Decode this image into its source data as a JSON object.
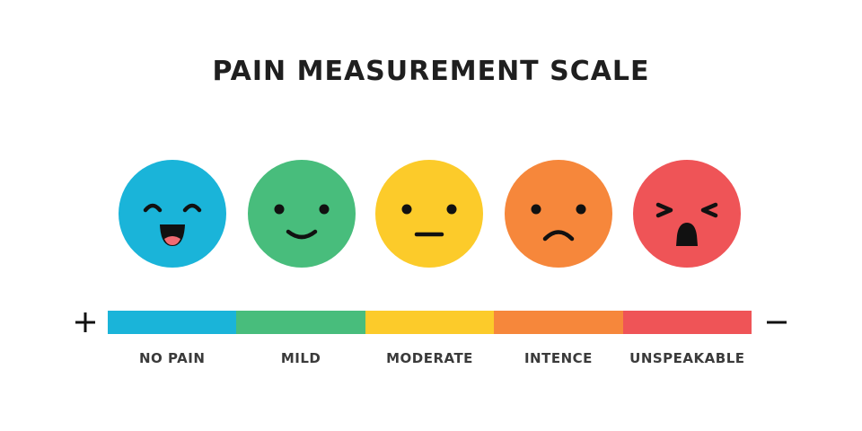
{
  "title": "PAIN MEASUREMENT SCALE",
  "scale": {
    "plus_sign": "+",
    "minus_sign": "−",
    "levels": [
      {
        "label": "NO PAIN",
        "color": "#1ab4d9",
        "face": "laughing-face-icon"
      },
      {
        "label": "MILD",
        "color": "#48bd7c",
        "face": "smiling-face-icon"
      },
      {
        "label": "MODERATE",
        "color": "#fccb2a",
        "face": "neutral-face-icon"
      },
      {
        "label": "INTENCE",
        "color": "#f6873b",
        "face": "frowning-face-icon"
      },
      {
        "label": "UNSPEAKABLE",
        "color": "#ef5457",
        "face": "crying-face-icon"
      }
    ]
  }
}
